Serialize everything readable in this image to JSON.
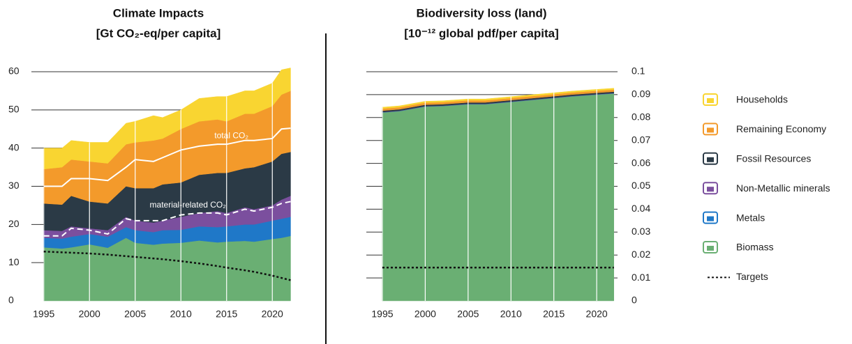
{
  "chart_data": [
    {
      "type": "stacked-area",
      "title": "Climate Impacts",
      "subtitle": "[Gt CO₂-eq/per capita]",
      "x": [
        1995,
        1997,
        1998,
        2000,
        2002,
        2004,
        2005,
        2007,
        2008,
        2010,
        2012,
        2014,
        2015,
        2017,
        2018,
        2020,
        2021,
        2022
      ],
      "xlim": [
        1993.8,
        2022.5
      ],
      "xticks": [
        1995,
        2000,
        2005,
        2010,
        2015,
        2020
      ],
      "ylim": [
        0,
        60
      ],
      "yticks": [
        0,
        10,
        20,
        30,
        40,
        50,
        60
      ],
      "grid": true,
      "series": [
        {
          "name": "Biomass",
          "color": "#6aaf73",
          "values": [
            14,
            13.7,
            14,
            14.8,
            13.9,
            16.5,
            15.2,
            14.7,
            15,
            15.2,
            15.8,
            15.3,
            15.5,
            15.7,
            15.5,
            16.2,
            16.5,
            17
          ]
        },
        {
          "name": "Metals",
          "color": "#1f78c8",
          "values": [
            2.5,
            2.6,
            2.8,
            2.7,
            2.9,
            2.8,
            3.3,
            3.3,
            3.5,
            3.4,
            3.7,
            4,
            4,
            4.3,
            4.5,
            4.8,
            5,
            5
          ]
        },
        {
          "name": "Non-Metallic minerals",
          "color": "#7b4f9e",
          "values": [
            2,
            2,
            2.7,
            1.5,
            1.7,
            2.7,
            2.5,
            2.5,
            2.5,
            3.4,
            3.5,
            4.2,
            3.5,
            4.5,
            4,
            4,
            5,
            5.5
          ]
        },
        {
          "name": "Fossil Resources",
          "color": "#2b3a46",
          "values": [
            7,
            6.9,
            8,
            7,
            7,
            8,
            8.5,
            9,
            9.5,
            9,
            10,
            10,
            10.5,
            10.2,
            11,
            11.5,
            12,
            11.5
          ]
        },
        {
          "name": "Remaining Economy",
          "color": "#f39a2b",
          "values": [
            9,
            9.8,
            9.5,
            10.5,
            10.5,
            11,
            12,
            12.5,
            12,
            14,
            14,
            14,
            13.5,
            14.3,
            14,
            14.5,
            15.5,
            16
          ]
        },
        {
          "name": "Households",
          "color": "#f9d531",
          "values": [
            5.5,
            5,
            5,
            5,
            5.5,
            5.5,
            5.5,
            6.5,
            5.5,
            5,
            6,
            6,
            6.5,
            6,
            6,
            6,
            6.5,
            6
          ]
        }
      ],
      "lines": [
        {
          "name": "total CO₂",
          "color": "#ffffff",
          "style": "solid",
          "values": [
            30,
            30,
            32,
            32,
            31.5,
            35,
            37,
            36.5,
            37.5,
            39.5,
            40.5,
            41,
            41,
            42,
            42,
            42.5,
            45,
            45.2
          ]
        },
        {
          "name": "material-related CO₂",
          "color": "#ffffff",
          "style": "dashed",
          "values": [
            17,
            17,
            19,
            18.5,
            17.5,
            21.5,
            21,
            21,
            21,
            22.5,
            23,
            23,
            22.5,
            24,
            23.5,
            24.5,
            25.5,
            26
          ]
        },
        {
          "color": "#111111",
          "style": "dotted",
          "values": [
            12.9,
            12.7,
            12.6,
            12.4,
            12.1,
            11.7,
            11.5,
            11.1,
            10.9,
            10.4,
            9.8,
            9.1,
            8.7,
            8.0,
            7.6,
            6.6,
            6.0,
            5.4
          ]
        }
      ]
    },
    {
      "type": "stacked-area",
      "title": "Biodiversity loss (land)",
      "subtitle": "[10⁻¹² global pdf/per capita]",
      "x": [
        1995,
        1997,
        2000,
        2002,
        2005,
        2007,
        2010,
        2012,
        2015,
        2017,
        2020,
        2022
      ],
      "xlim": [
        1993.7,
        2023
      ],
      "xticks": [
        1995,
        2000,
        2005,
        2010,
        2015,
        2020
      ],
      "ylim": [
        0,
        0.1
      ],
      "yticks": [
        0,
        0.01,
        0.02,
        0.03,
        0.04,
        0.05,
        0.06,
        0.07,
        0.08,
        0.09,
        0.1
      ],
      "grid": true,
      "series": [
        {
          "name": "Biomass",
          "color": "#6aaf73",
          "values": [
            0.0822,
            0.0828,
            0.0848,
            0.085,
            0.0858,
            0.0858,
            0.0868,
            0.0875,
            0.0885,
            0.0892,
            0.09,
            0.0905
          ]
        },
        {
          "name": "Metals",
          "color": "#1f78c8",
          "values": [
            0.0001,
            0.0001,
            0.0001,
            0.0001,
            0.0001,
            0.0001,
            0.0001,
            0.0001,
            0.0001,
            0.0001,
            0.0001,
            0.0001
          ]
        },
        {
          "name": "Non-Metallic minerals",
          "color": "#7b4f9e",
          "values": [
            0.0001,
            0.0001,
            0.0001,
            0.0001,
            0.0001,
            0.0001,
            0.0001,
            0.0001,
            0.0001,
            0.0001,
            0.0001,
            0.0001
          ]
        },
        {
          "name": "Fossil Resources",
          "color": "#2b3a46",
          "values": [
            0.0006,
            0.0006,
            0.0006,
            0.0006,
            0.0006,
            0.0006,
            0.0006,
            0.0006,
            0.0006,
            0.0006,
            0.0006,
            0.0006
          ]
        },
        {
          "name": "Remaining Economy",
          "color": "#f39a2b",
          "values": [
            0.0009,
            0.0009,
            0.0009,
            0.0009,
            0.0009,
            0.0009,
            0.0009,
            0.0009,
            0.0009,
            0.0009,
            0.0009,
            0.0009
          ]
        },
        {
          "name": "Households",
          "color": "#f9d531",
          "values": [
            0.0006,
            0.0006,
            0.0006,
            0.0006,
            0.0006,
            0.0006,
            0.0006,
            0.0006,
            0.0006,
            0.0006,
            0.0006,
            0.0006
          ]
        }
      ],
      "lines": [
        {
          "name": "Targets",
          "color": "#111111",
          "style": "dotted",
          "values": [
            0.0145,
            0.0145,
            0.0145,
            0.0145,
            0.0145,
            0.0145,
            0.0145,
            0.0145,
            0.0145,
            0.0145,
            0.0145,
            0.0145
          ]
        }
      ]
    }
  ]
}
